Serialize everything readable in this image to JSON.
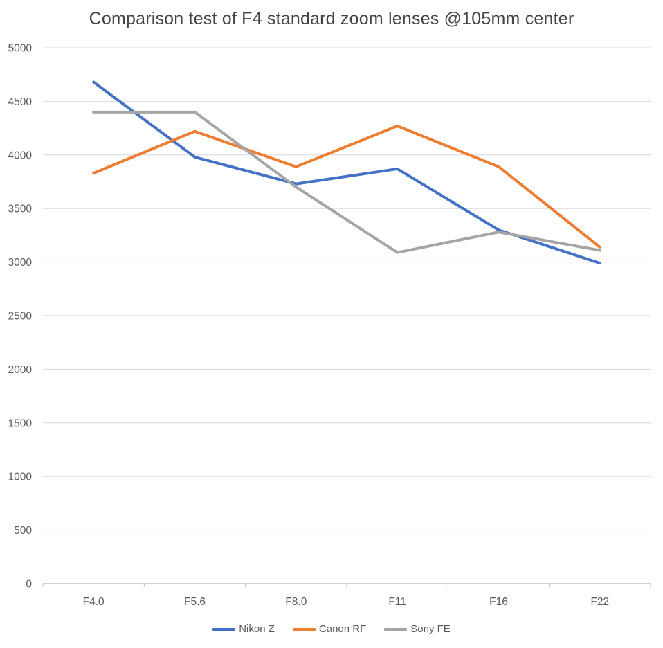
{
  "chart_data": {
    "type": "line",
    "title": "Comparison test of F4 standard zoom lenses @105mm center",
    "categories": [
      "F4.0",
      "F5.6",
      "F8.0",
      "F11",
      "F16",
      "F22"
    ],
    "series": [
      {
        "name": "Nikon Z",
        "color": "#4472C4",
        "values": [
          4680,
          3980,
          3730,
          3870,
          3300,
          2990
        ]
      },
      {
        "name": "Canon RF",
        "color": "#ED7D31",
        "values": [
          3830,
          4220,
          3890,
          4270,
          3890,
          3140
        ]
      },
      {
        "name": "Sony FE",
        "color": "#A5A5A5",
        "values": [
          4400,
          4400,
          3700,
          3090,
          3280,
          3110
        ]
      }
    ],
    "xlabel": "",
    "ylabel": "",
    "ylim": [
      0,
      5000
    ],
    "yticks": [
      0,
      500,
      1000,
      1500,
      2000,
      2500,
      3000,
      3500,
      4000,
      4500,
      5000
    ],
    "grid": true,
    "legend_position": "bottom"
  },
  "styles": {
    "background": "#FFFFFF",
    "gridline_color": "#D9D9D9",
    "axis_line_color": "#BFBFBF",
    "tick_label_color": "#595959",
    "title_color": "#444444"
  }
}
